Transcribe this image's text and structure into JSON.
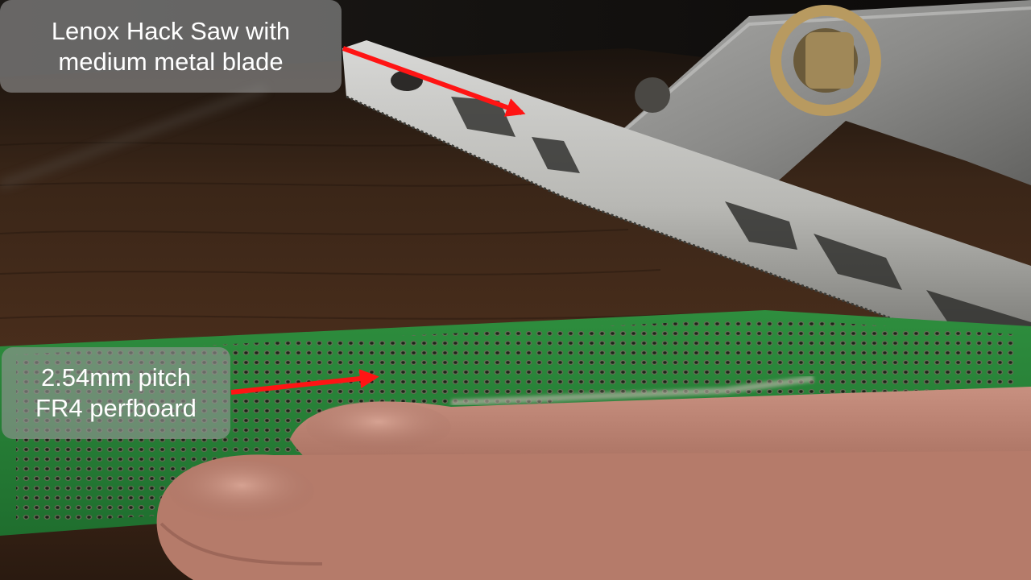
{
  "annotations": {
    "saw": {
      "line1": "Lenox Hack Saw with",
      "line2": "medium metal blade"
    },
    "perfboard": {
      "line1": "2.54mm pitch",
      "line2": "FR4 perfboard"
    }
  },
  "colors": {
    "arrow": "#ff1414",
    "pcb_green": "#2a8a3a",
    "callout_bg": "#969696"
  },
  "scene_description_icons": [
    "hacksaw",
    "perfboard",
    "hand"
  ]
}
